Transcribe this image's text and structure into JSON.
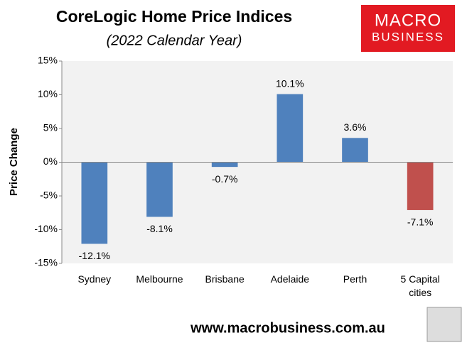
{
  "chart_data": {
    "type": "bar",
    "title": "CoreLogic Home Price Indices",
    "subtitle": "(2022 Calendar Year)",
    "y_label": "Price Change",
    "categories": [
      "Sydney",
      "Melbourne",
      "Brisbane",
      "Adelaide",
      "Perth",
      "5 Capital cities"
    ],
    "values": [
      -12.1,
      -8.1,
      -0.7,
      10.1,
      3.6,
      -7.1
    ],
    "value_labels": [
      "-12.1%",
      "-8.1%",
      "-0.7%",
      "10.1%",
      "3.6%",
      "-7.1%"
    ],
    "colors": [
      "#4f81bd",
      "#4f81bd",
      "#4f81bd",
      "#4f81bd",
      "#4f81bd",
      "#c0504d"
    ],
    "ylim": [
      -15,
      15
    ],
    "yticks": [
      {
        "value": -15,
        "label": "-15%"
      },
      {
        "value": -10,
        "label": "-10%"
      },
      {
        "value": -5,
        "label": "-5%"
      },
      {
        "value": 0,
        "label": "0%"
      },
      {
        "value": 5,
        "label": "5%"
      },
      {
        "value": 10,
        "label": "10%"
      },
      {
        "value": 15,
        "label": "15%"
      }
    ],
    "grid": false
  },
  "logo": {
    "line1": "MACRO",
    "line2": "BUSINESS"
  },
  "website": "www.macrobusiness.com.au"
}
